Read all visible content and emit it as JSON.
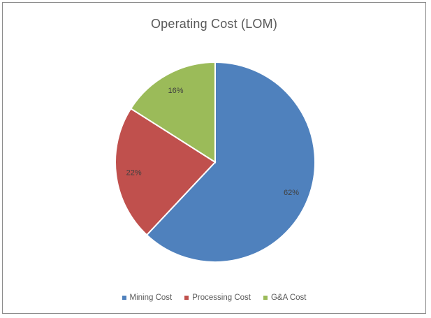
{
  "chart_data": {
    "type": "pie",
    "title": "Operating Cost (LOM)",
    "categories": [
      "Mining Cost",
      "Processing Cost",
      "G&A Cost"
    ],
    "values": [
      62,
      22,
      16
    ],
    "data_labels": [
      "62%",
      "22%",
      "16%"
    ],
    "colors": [
      "#4f81bd",
      "#c0504d",
      "#9bbb59"
    ],
    "legend_position": "bottom"
  }
}
